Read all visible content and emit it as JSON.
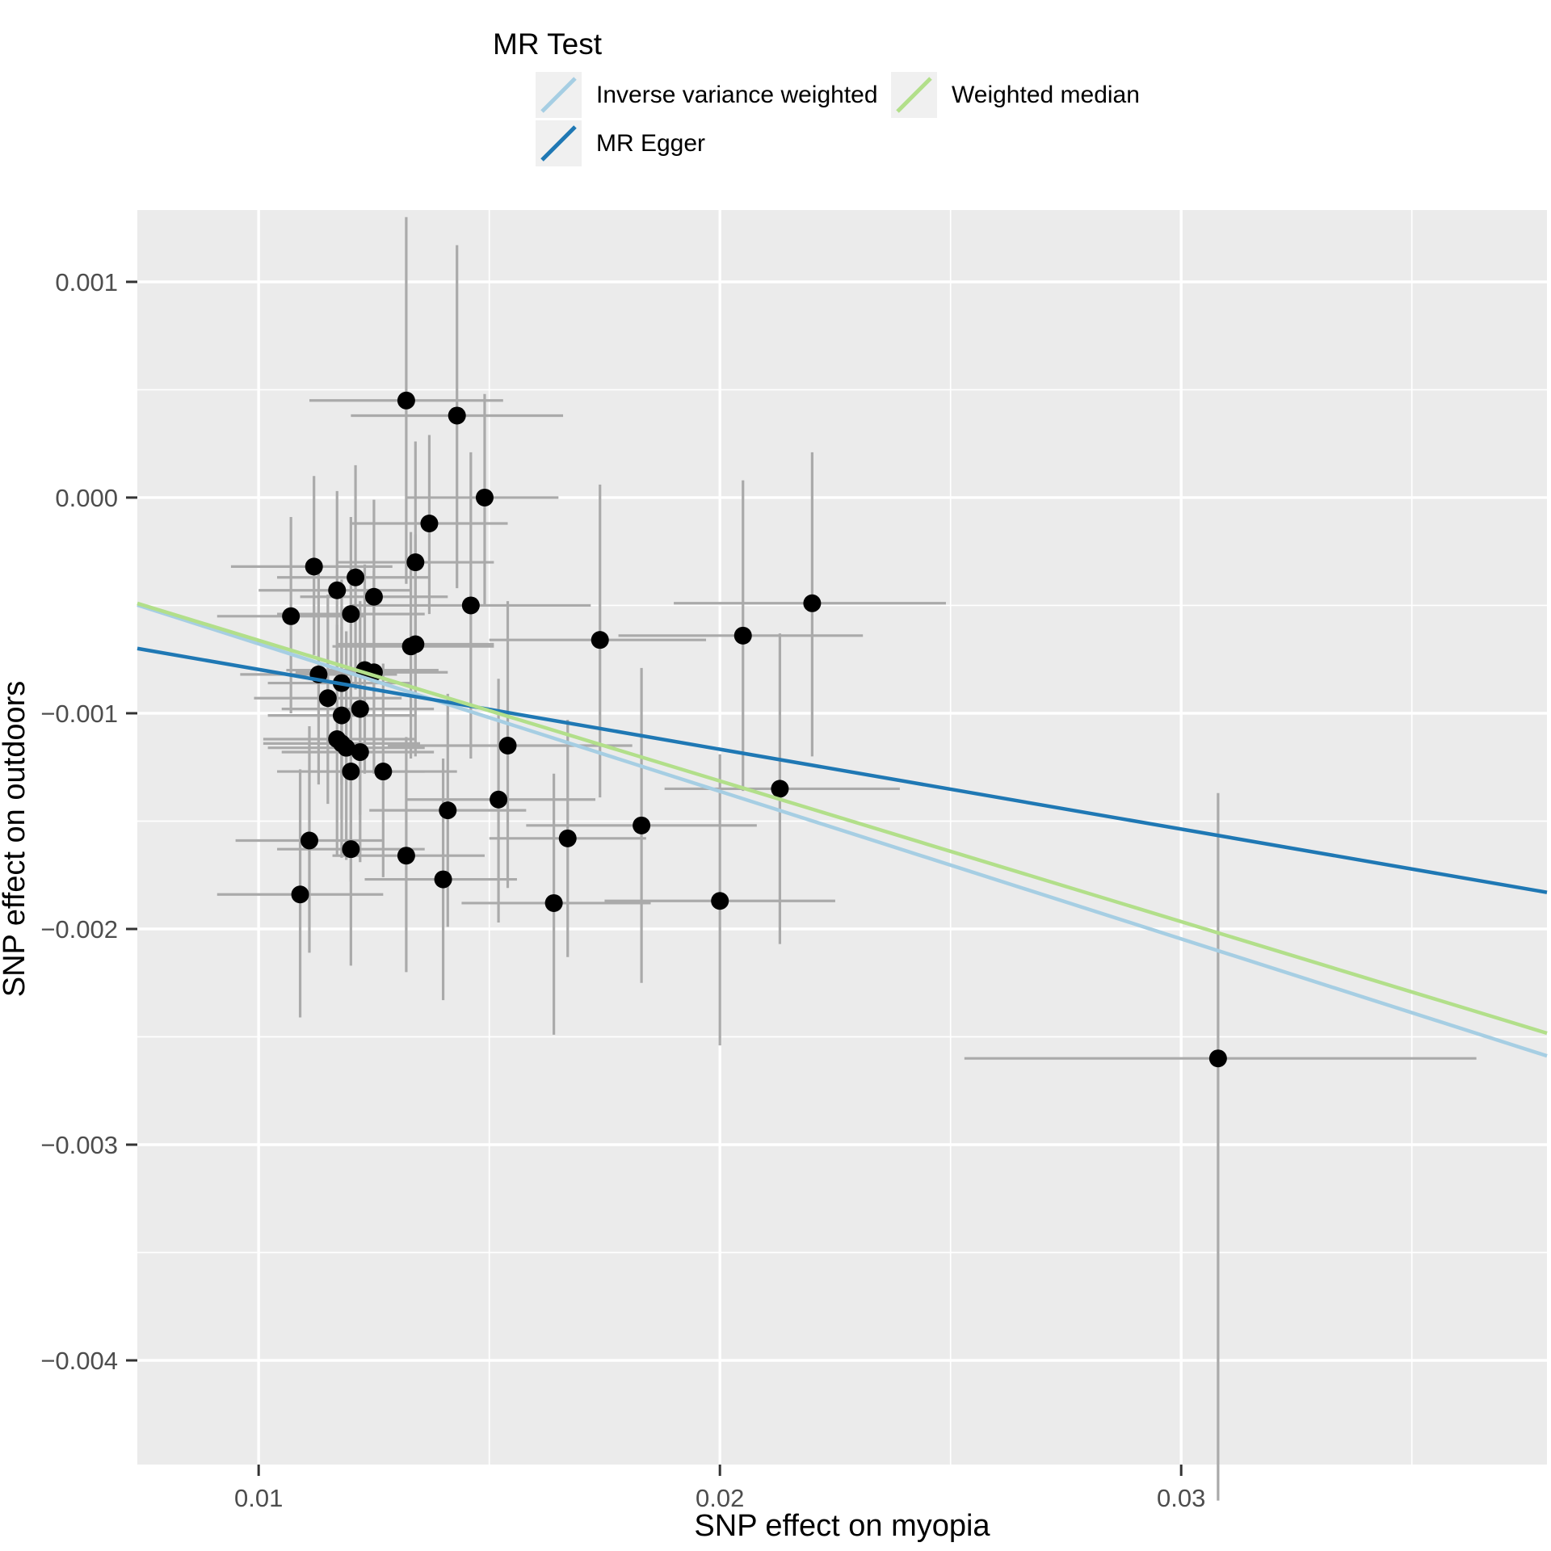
{
  "chart_data": {
    "type": "scatter",
    "title": "",
    "xlabel": "SNP effect on myopia",
    "ylabel": "SNP effect on outdoors",
    "legend_title": "MR Test",
    "legend_position": "top",
    "grid": "on",
    "colors": {
      "panel_background": "#EBEBEB",
      "gridline": "#FFFFFF",
      "error_bar": "#AAAAAA",
      "point": "#000000",
      "tick_label": "#4D4D4D",
      "tick_mark": "#333333",
      "legend_key_background": "#F0F0F0"
    },
    "axes": {
      "x": {
        "min": 0.00737,
        "max": 0.03793,
        "majors": [
          0.01,
          0.02,
          0.03
        ],
        "minors": [
          0.015,
          0.025,
          0.035
        ],
        "labels": [
          "0.01",
          "0.02",
          "0.03"
        ]
      },
      "y": {
        "min": -0.004483,
        "max": 0.001333,
        "majors": [
          0.001,
          0.0,
          -0.001,
          -0.002,
          -0.003,
          -0.004
        ],
        "minors": [
          0.0005,
          -0.0005,
          -0.0015,
          -0.0025,
          -0.0035
        ],
        "labels": [
          "0.001",
          "0.000",
          "−0.001",
          "−0.002",
          "−0.003",
          "−0.004"
        ]
      }
    },
    "series": [
      {
        "name": "Inverse variance weighted",
        "color": "#A6CEE3",
        "slope": -0.0684,
        "intercept": 6e-06
      },
      {
        "name": "MR Egger",
        "color": "#1F78B4",
        "slope": -0.037,
        "intercept": -0.000427
      },
      {
        "name": "Weighted median",
        "color": "#B2DF8A",
        "slope": -0.0652,
        "intercept": -1e-05
      }
    ],
    "points": [
      {
        "x": 0.0132,
        "y": 0.00045,
        "xlo": 0.0111,
        "xhi": 0.0153,
        "ylo": -0.0004,
        "yhi": 0.0013
      },
      {
        "x": 0.0143,
        "y": 0.00038,
        "xlo": 0.012,
        "xhi": 0.0166,
        "ylo": -0.00042,
        "yhi": 0.00117
      },
      {
        "x": 0.0149,
        "y": 0.0,
        "xlo": 0.0132,
        "xhi": 0.0165,
        "ylo": -0.0005,
        "yhi": 0.00048
      },
      {
        "x": 0.0137,
        "y": -0.00012,
        "xlo": 0.012,
        "xhi": 0.0154,
        "ylo": -0.00054,
        "yhi": 0.00029
      },
      {
        "x": 0.0134,
        "y": -0.0003,
        "xlo": 0.0117,
        "xhi": 0.0151,
        "ylo": -0.00086,
        "yhi": 0.00026
      },
      {
        "x": 0.0112,
        "y": -0.00032,
        "xlo": 0.0094,
        "xhi": 0.0129,
        "ylo": -0.00073,
        "yhi": 0.0001
      },
      {
        "x": 0.0121,
        "y": -0.00037,
        "xlo": 0.0104,
        "xhi": 0.0137,
        "ylo": -0.00089,
        "yhi": 0.00015
      },
      {
        "x": 0.0117,
        "y": -0.00043,
        "xlo": 0.01,
        "xhi": 0.0133,
        "ylo": -0.00089,
        "yhi": 3e-05
      },
      {
        "x": 0.0125,
        "y": -0.00046,
        "xlo": 0.0109,
        "xhi": 0.0141,
        "ylo": -0.00091,
        "yhi": -1e-05
      },
      {
        "x": 0.0146,
        "y": -0.0005,
        "xlo": 0.012,
        "xhi": 0.0172,
        "ylo": -0.00121,
        "yhi": 0.00021
      },
      {
        "x": 0.012,
        "y": -0.00054,
        "xlo": 0.0104,
        "xhi": 0.0136,
        "ylo": -0.001,
        "yhi": -9e-05
      },
      {
        "x": 0.0107,
        "y": -0.00055,
        "xlo": 0.0091,
        "xhi": 0.0123,
        "ylo": -0.001,
        "yhi": -9e-05
      },
      {
        "x": 0.0133,
        "y": -0.00069,
        "xlo": 0.0116,
        "xhi": 0.0151,
        "ylo": -0.00121,
        "yhi": -0.00016
      },
      {
        "x": 0.0134,
        "y": -0.00068,
        "xlo": 0.0117,
        "xhi": 0.0151,
        "ylo": -0.0012,
        "yhi": -0.00017
      },
      {
        "x": 0.0113,
        "y": -0.00082,
        "xlo": 0.0096,
        "xhi": 0.013,
        "ylo": -0.00133,
        "yhi": -0.00031
      },
      {
        "x": 0.0118,
        "y": -0.00086,
        "xlo": 0.0102,
        "xhi": 0.0133,
        "ylo": -0.00133,
        "yhi": -0.00038
      },
      {
        "x": 0.0123,
        "y": -0.0008,
        "xlo": 0.0106,
        "xhi": 0.0139,
        "ylo": -0.00128,
        "yhi": -0.00031
      },
      {
        "x": 0.0125,
        "y": -0.00081,
        "xlo": 0.0108,
        "xhi": 0.0141,
        "ylo": -0.00128,
        "yhi": -0.00034
      },
      {
        "x": 0.0115,
        "y": -0.00093,
        "xlo": 0.0099,
        "xhi": 0.0131,
        "ylo": -0.00142,
        "yhi": -0.00045
      },
      {
        "x": 0.0122,
        "y": -0.00098,
        "xlo": 0.0105,
        "xhi": 0.0138,
        "ylo": -0.00147,
        "yhi": -0.00048
      },
      {
        "x": 0.0118,
        "y": -0.00101,
        "xlo": 0.0102,
        "xhi": 0.0134,
        "ylo": -0.00149,
        "yhi": -0.00052
      },
      {
        "x": 0.0117,
        "y": -0.00112,
        "xlo": 0.0101,
        "xhi": 0.0134,
        "ylo": -0.00166,
        "yhi": -0.00059
      },
      {
        "x": 0.0118,
        "y": -0.00114,
        "xlo": 0.0101,
        "xhi": 0.0135,
        "ylo": -0.00167,
        "yhi": -0.0006
      },
      {
        "x": 0.0119,
        "y": -0.00116,
        "xlo": 0.0102,
        "xhi": 0.0136,
        "ylo": -0.00168,
        "yhi": -0.00062
      },
      {
        "x": 0.0122,
        "y": -0.00118,
        "xlo": 0.0105,
        "xhi": 0.0138,
        "ylo": -0.00169,
        "yhi": -0.00067
      },
      {
        "x": 0.012,
        "y": -0.00127,
        "xlo": 0.0104,
        "xhi": 0.0136,
        "ylo": -0.00178,
        "yhi": -0.00076
      },
      {
        "x": 0.0127,
        "y": -0.00127,
        "xlo": 0.0111,
        "xhi": 0.0143,
        "ylo": -0.00176,
        "yhi": -0.00077
      },
      {
        "x": 0.0154,
        "y": -0.00115,
        "xlo": 0.0128,
        "xhi": 0.0181,
        "ylo": -0.00181,
        "yhi": -0.00048
      },
      {
        "x": 0.0141,
        "y": -0.00145,
        "xlo": 0.0124,
        "xhi": 0.0158,
        "ylo": -0.00199,
        "yhi": -0.00091
      },
      {
        "x": 0.0152,
        "y": -0.0014,
        "xlo": 0.0132,
        "xhi": 0.0173,
        "ylo": -0.00197,
        "yhi": -0.00084
      },
      {
        "x": 0.0111,
        "y": -0.00159,
        "xlo": 0.0095,
        "xhi": 0.0127,
        "ylo": -0.00211,
        "yhi": -0.00106
      },
      {
        "x": 0.012,
        "y": -0.00163,
        "xlo": 0.0104,
        "xhi": 0.0136,
        "ylo": -0.00217,
        "yhi": -0.00108
      },
      {
        "x": 0.0132,
        "y": -0.00166,
        "xlo": 0.0116,
        "xhi": 0.0149,
        "ylo": -0.0022,
        "yhi": -0.00111
      },
      {
        "x": 0.014,
        "y": -0.00177,
        "xlo": 0.0123,
        "xhi": 0.0156,
        "ylo": -0.00233,
        "yhi": -0.00121
      },
      {
        "x": 0.0109,
        "y": -0.00184,
        "xlo": 0.0091,
        "xhi": 0.0127,
        "ylo": -0.00241,
        "yhi": -0.00126
      },
      {
        "x": 0.022,
        "y": -0.00049,
        "xlo": 0.019,
        "xhi": 0.0249,
        "ylo": -0.0012,
        "yhi": 0.00021
      },
      {
        "x": 0.0205,
        "y": -0.00064,
        "xlo": 0.0178,
        "xhi": 0.0231,
        "ylo": -0.00136,
        "yhi": 8e-05
      },
      {
        "x": 0.0174,
        "y": -0.00066,
        "xlo": 0.015,
        "xhi": 0.0197,
        "ylo": -0.00139,
        "yhi": 6e-05
      },
      {
        "x": 0.0213,
        "y": -0.00135,
        "xlo": 0.0188,
        "xhi": 0.0239,
        "ylo": -0.00207,
        "yhi": -0.00063
      },
      {
        "x": 0.0183,
        "y": -0.00152,
        "xlo": 0.0158,
        "xhi": 0.0208,
        "ylo": -0.00225,
        "yhi": -0.00079
      },
      {
        "x": 0.0167,
        "y": -0.00158,
        "xlo": 0.015,
        "xhi": 0.0184,
        "ylo": -0.00213,
        "yhi": -0.00103
      },
      {
        "x": 0.0164,
        "y": -0.00188,
        "xlo": 0.0144,
        "xhi": 0.0185,
        "ylo": -0.00249,
        "yhi": -0.00128
      },
      {
        "x": 0.02,
        "y": -0.00187,
        "xlo": 0.0175,
        "xhi": 0.0225,
        "ylo": -0.00254,
        "yhi": -0.00119
      },
      {
        "x": 0.0308,
        "y": -0.0026,
        "xlo": 0.0253,
        "xhi": 0.0364,
        "ylo": -0.00465,
        "yhi": -0.00137
      }
    ]
  },
  "legend": {
    "title": "MR Test",
    "items": [
      {
        "label": "Inverse variance weighted",
        "color": "#A6CEE3"
      },
      {
        "label": "MR Egger",
        "color": "#1F78B4"
      },
      {
        "label": "Weighted median",
        "color": "#B2DF8A"
      }
    ]
  }
}
